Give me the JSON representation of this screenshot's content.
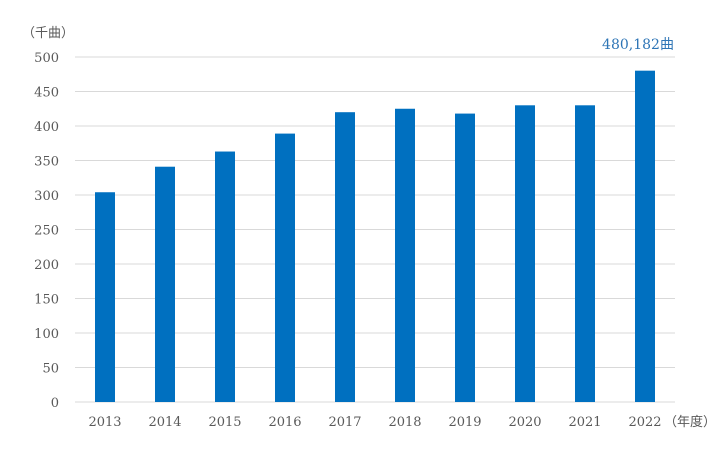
{
  "chart_data": {
    "type": "bar",
    "categories": [
      "2013",
      "2014",
      "2015",
      "2016",
      "2017",
      "2018",
      "2019",
      "2020",
      "2021",
      "2022"
    ],
    "values": [
      304,
      341,
      363,
      389,
      420,
      425,
      418,
      430,
      430,
      480.182
    ],
    "ylabel": "（千曲）",
    "xlabel": "（年度）",
    "ylim": [
      0,
      500
    ],
    "yticks": [
      0,
      50,
      100,
      150,
      200,
      250,
      300,
      350,
      400,
      450,
      500
    ],
    "grid": true,
    "annotation": {
      "text": "480,182曲",
      "category": "2022"
    },
    "colors": {
      "bar": "#0070C0",
      "grid": "#D9D9D9",
      "annotation": "#2E75B6",
      "text": "#595959"
    }
  }
}
